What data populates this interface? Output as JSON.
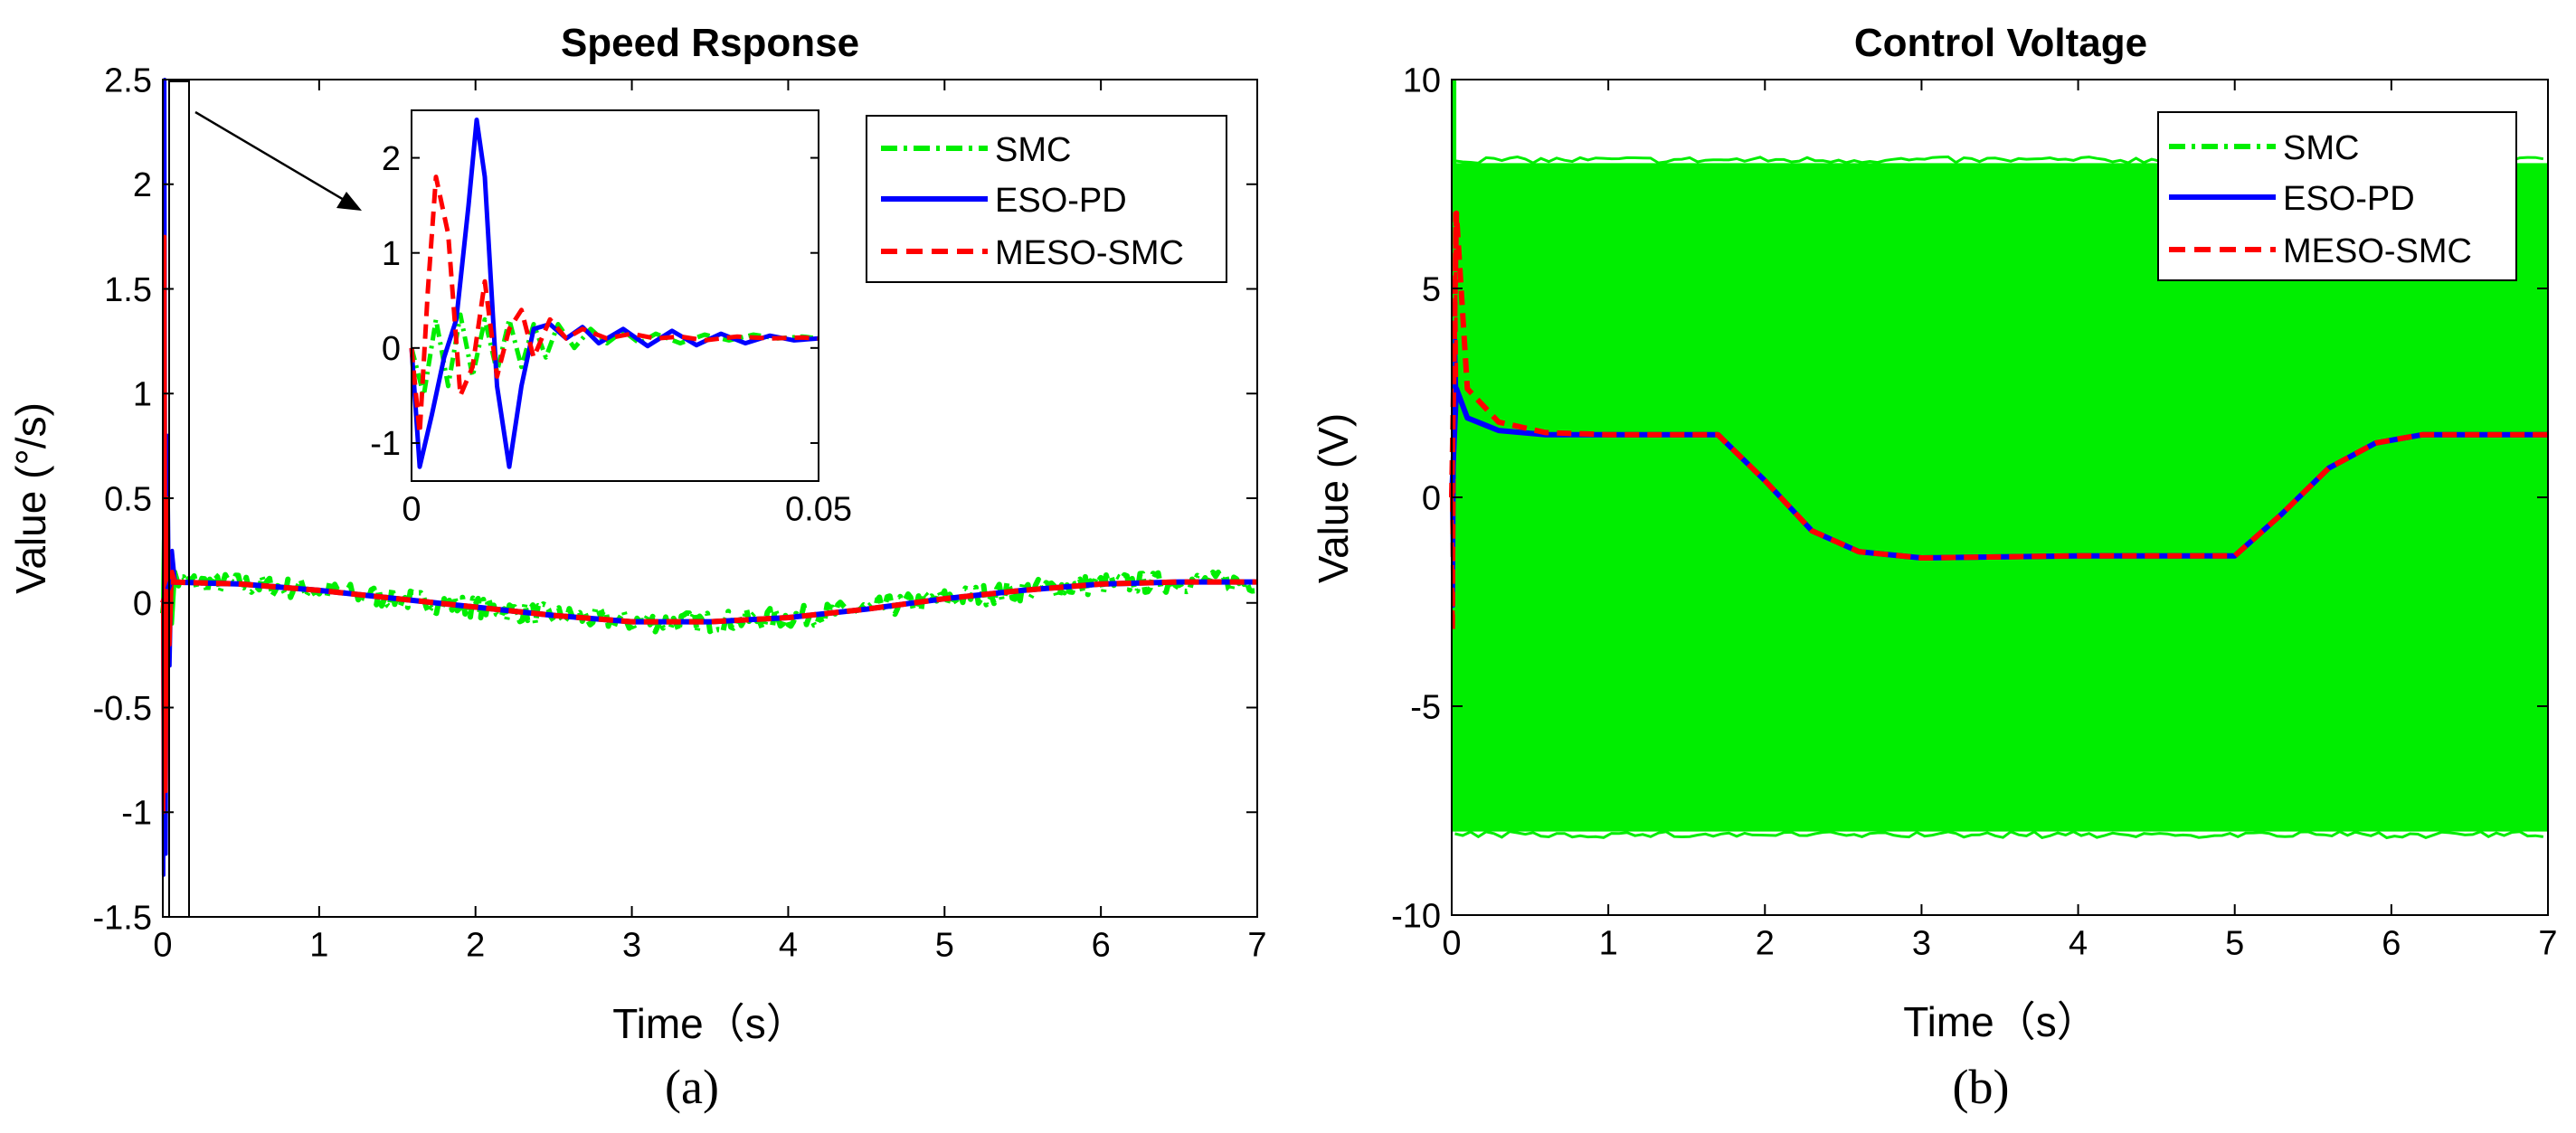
{
  "colors": {
    "SMC": "#00ee00",
    "ESO-PD": "#0000ff",
    "MESO-SMC": "#ff0000",
    "axis": "#000000"
  },
  "panels": {
    "a": {
      "caption": "(a)"
    },
    "b": {
      "caption": "(b)"
    }
  },
  "chart_data": [
    {
      "id": "a",
      "type": "line",
      "title": "Speed Rsponse",
      "xlabel": "Time（s）",
      "ylabel": "Value (°/s)",
      "xlim": [
        0,
        7
      ],
      "ylim": [
        -1.5,
        2.5
      ],
      "xticks": [
        "0",
        "1",
        "2",
        "3",
        "4",
        "5",
        "6",
        "7"
      ],
      "yticks": [
        "2.5",
        "2",
        "1.5",
        "1",
        "0.5",
        "0",
        "-0.5",
        "-1",
        "-1.5"
      ],
      "legend": "top-right",
      "series": [
        {
          "name": "SMC",
          "style": "dash-dot",
          "x": [
            0,
            0.05,
            0.5,
            1,
            1.5,
            2,
            2.5,
            3,
            3.5,
            4,
            4.5,
            5,
            5.5,
            6,
            6.5,
            7
          ],
          "y": [
            0,
            0.1,
            0.09,
            0.06,
            0.02,
            -0.02,
            -0.06,
            -0.09,
            -0.09,
            -0.07,
            -0.03,
            0.02,
            0.06,
            0.09,
            0.1,
            0.1
          ],
          "noise": 0.05
        },
        {
          "name": "ESO-PD",
          "style": "solid",
          "x": [
            0,
            0.05,
            0.5,
            1,
            1.5,
            2,
            2.5,
            3,
            3.5,
            4,
            4.5,
            5,
            5.5,
            6,
            6.5,
            7
          ],
          "y": [
            0,
            0.1,
            0.09,
            0.06,
            0.02,
            -0.02,
            -0.06,
            -0.09,
            -0.09,
            -0.07,
            -0.03,
            0.02,
            0.06,
            0.09,
            0.1,
            0.1
          ]
        },
        {
          "name": "MESO-SMC",
          "style": "dashed",
          "x": [
            0,
            0.05,
            0.5,
            1,
            1.5,
            2,
            2.5,
            3,
            3.5,
            4,
            4.5,
            5,
            5.5,
            6,
            6.5,
            7
          ],
          "y": [
            0,
            0.1,
            0.09,
            0.06,
            0.02,
            -0.02,
            -0.06,
            -0.09,
            -0.09,
            -0.07,
            -0.03,
            0.02,
            0.06,
            0.09,
            0.1,
            0.1
          ]
        }
      ],
      "inset": {
        "xlim": [
          0,
          0.05
        ],
        "ylim": [
          -1.4,
          2.5
        ],
        "xticks": [
          "0",
          "0.05"
        ],
        "yticks": [
          "2",
          "1",
          "0",
          "-1"
        ],
        "series": [
          {
            "name": "SMC",
            "style": "dash-dot",
            "x": [
              0,
              0.0015,
              0.003,
              0.0045,
              0.006,
              0.0075,
              0.009,
              0.0105,
              0.012,
              0.0135,
              0.015,
              0.0165,
              0.018,
              0.02,
              0.022,
              0.024,
              0.026,
              0.028,
              0.03,
              0.033,
              0.036,
              0.039,
              0.042,
              0.045,
              0.048,
              0.05
            ],
            "y": [
              0,
              -0.5,
              0.3,
              -0.4,
              0.35,
              -0.3,
              0.3,
              -0.25,
              0.3,
              -0.2,
              0.25,
              -0.1,
              0.25,
              0,
              0.2,
              0.05,
              0.18,
              0.05,
              0.15,
              0.05,
              0.14,
              0.08,
              0.14,
              0.1,
              0.12,
              0.1
            ]
          },
          {
            "name": "ESO-PD",
            "style": "solid",
            "x": [
              0,
              0.001,
              0.0025,
              0.004,
              0.0055,
              0.007,
              0.008,
              0.009,
              0.0105,
              0.012,
              0.0135,
              0.015,
              0.017,
              0.019,
              0.021,
              0.023,
              0.026,
              0.029,
              0.032,
              0.035,
              0.038,
              0.041,
              0.044,
              0.047,
              0.05
            ],
            "y": [
              0,
              -1.25,
              -0.7,
              -0.1,
              0.3,
              1.5,
              2.4,
              1.8,
              -0.4,
              -1.25,
              -0.4,
              0.2,
              0.25,
              0.1,
              0.22,
              0.05,
              0.2,
              0.02,
              0.18,
              0.03,
              0.15,
              0.05,
              0.13,
              0.08,
              0.1
            ]
          },
          {
            "name": "MESO-SMC",
            "style": "dashed",
            "x": [
              0,
              0.001,
              0.002,
              0.003,
              0.0045,
              0.006,
              0.0075,
              0.009,
              0.0105,
              0.012,
              0.0135,
              0.015,
              0.017,
              0.019,
              0.021,
              0.024,
              0.027,
              0.03,
              0.033,
              0.036,
              0.04,
              0.044,
              0.048,
              0.05
            ],
            "y": [
              0,
              -0.9,
              0.6,
              1.8,
              1.2,
              -0.5,
              -0.2,
              0.7,
              -0.3,
              0.2,
              0.4,
              -0.1,
              0.3,
              0.1,
              0.2,
              0.1,
              0.15,
              0.1,
              0.12,
              0.08,
              0.12,
              0.1,
              0.11,
              0.1
            ]
          }
        ]
      }
    },
    {
      "id": "b",
      "type": "line",
      "title": "Control Voltage",
      "xlabel": "Time（s）",
      "ylabel": "Value (V)",
      "xlim": [
        0,
        7
      ],
      "ylim": [
        -10,
        10
      ],
      "xticks": [
        "0",
        "1",
        "2",
        "3",
        "4",
        "5",
        "6",
        "7"
      ],
      "yticks": [
        "10",
        "5",
        "0",
        "-5",
        "-10"
      ],
      "legend": "top-right",
      "series": [
        {
          "name": "SMC",
          "style": "dash-dot",
          "band": [
            -8,
            8
          ],
          "peak": 10
        },
        {
          "name": "ESO-PD",
          "style": "solid",
          "x": [
            0,
            0.03,
            0.1,
            0.3,
            0.6,
            1.0,
            1.7,
            2.0,
            2.3,
            2.6,
            3.0,
            4.0,
            5.0,
            5.3,
            5.6,
            5.9,
            6.2,
            7.0
          ],
          "y": [
            0,
            2.6,
            1.9,
            1.6,
            1.5,
            1.5,
            1.5,
            0.4,
            -0.8,
            -1.3,
            -1.45,
            -1.4,
            -1.4,
            -0.4,
            0.7,
            1.3,
            1.5,
            1.5
          ]
        },
        {
          "name": "MESO-SMC",
          "style": "dashed",
          "x": [
            0,
            0.03,
            0.1,
            0.3,
            0.6,
            1.0,
            1.7,
            2.0,
            2.3,
            2.6,
            3.0,
            4.0,
            5.0,
            5.3,
            5.6,
            5.9,
            6.2,
            7.0
          ],
          "y": [
            0,
            6.8,
            2.6,
            1.8,
            1.55,
            1.5,
            1.5,
            0.4,
            -0.8,
            -1.3,
            -1.45,
            -1.4,
            -1.4,
            -0.4,
            0.7,
            1.3,
            1.5,
            1.5
          ]
        }
      ]
    }
  ]
}
